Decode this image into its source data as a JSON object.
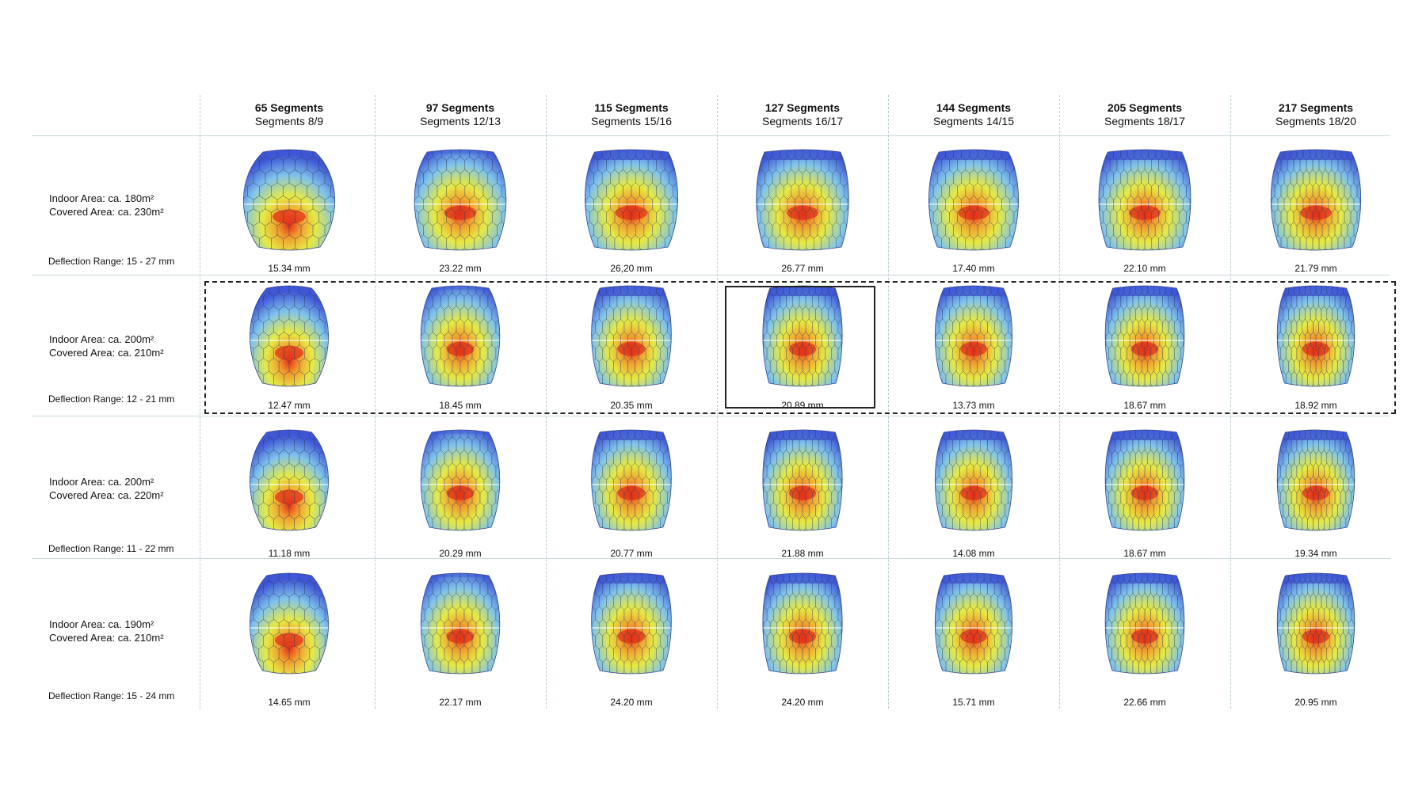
{
  "columns": [
    {
      "title": "65 Segments",
      "subtitle": "Segments 8/9"
    },
    {
      "title": "97 Segments",
      "subtitle": "Segments 12/13"
    },
    {
      "title": "115 Segments",
      "subtitle": "Segments 15/16"
    },
    {
      "title": "127 Segments",
      "subtitle": "Segments 16/17"
    },
    {
      "title": "144 Segments",
      "subtitle": "Segments 14/15"
    },
    {
      "title": "205 Segments",
      "subtitle": "Segments 18/17"
    },
    {
      "title": "217 Segments",
      "subtitle": "Segments 18/20"
    }
  ],
  "rows": [
    {
      "indoor": "Indoor Area: ca. 180m²",
      "covered": "Covered Area: ca. 230m²",
      "range": "Deflection Range: 15 - 27 mm",
      "values": [
        "15.34 mm",
        "23.22 mm",
        "26,20 mm",
        "26.77 mm",
        "17.40 mm",
        "22.10 mm",
        "21.79 mm"
      ]
    },
    {
      "indoor": "Indoor Area: ca. 200m²",
      "covered": "Covered Area: ca. 210m²",
      "range": "Deflection Range: 12 - 21 mm",
      "values": [
        "12.47 mm",
        "18.45 mm",
        "20.35 mm",
        "20.89 mm",
        "13.73 mm",
        "18.67 mm",
        "18.92 mm"
      ]
    },
    {
      "indoor": "Indoor Area: ca. 200m²",
      "covered": "Covered Area: ca. 220m²",
      "range": "Deflection Range: 11 - 22 mm",
      "values": [
        "11.18 mm",
        "20.29 mm",
        "20.77 mm",
        "21.88 mm",
        "14.08 mm",
        "18.67 mm",
        "19.34 mm"
      ]
    },
    {
      "indoor": "Indoor Area: ca. 190m²",
      "covered": "Covered Area: ca. 210m²",
      "range": "Deflection Range: 15 - 24 mm",
      "values": [
        "14.65 mm",
        "22.17 mm",
        "24.20 mm",
        "24.20 mm",
        "15.71 mm",
        "22.66 mm",
        "20.95 mm"
      ]
    }
  ],
  "highlight": {
    "row": 1,
    "col": 3
  },
  "colors": {
    "low": "#3f57d6",
    "mid": "#7fc3ec",
    "yellow": "#e6ea44",
    "orange": "#f29a2e",
    "high": "#e2301a"
  }
}
